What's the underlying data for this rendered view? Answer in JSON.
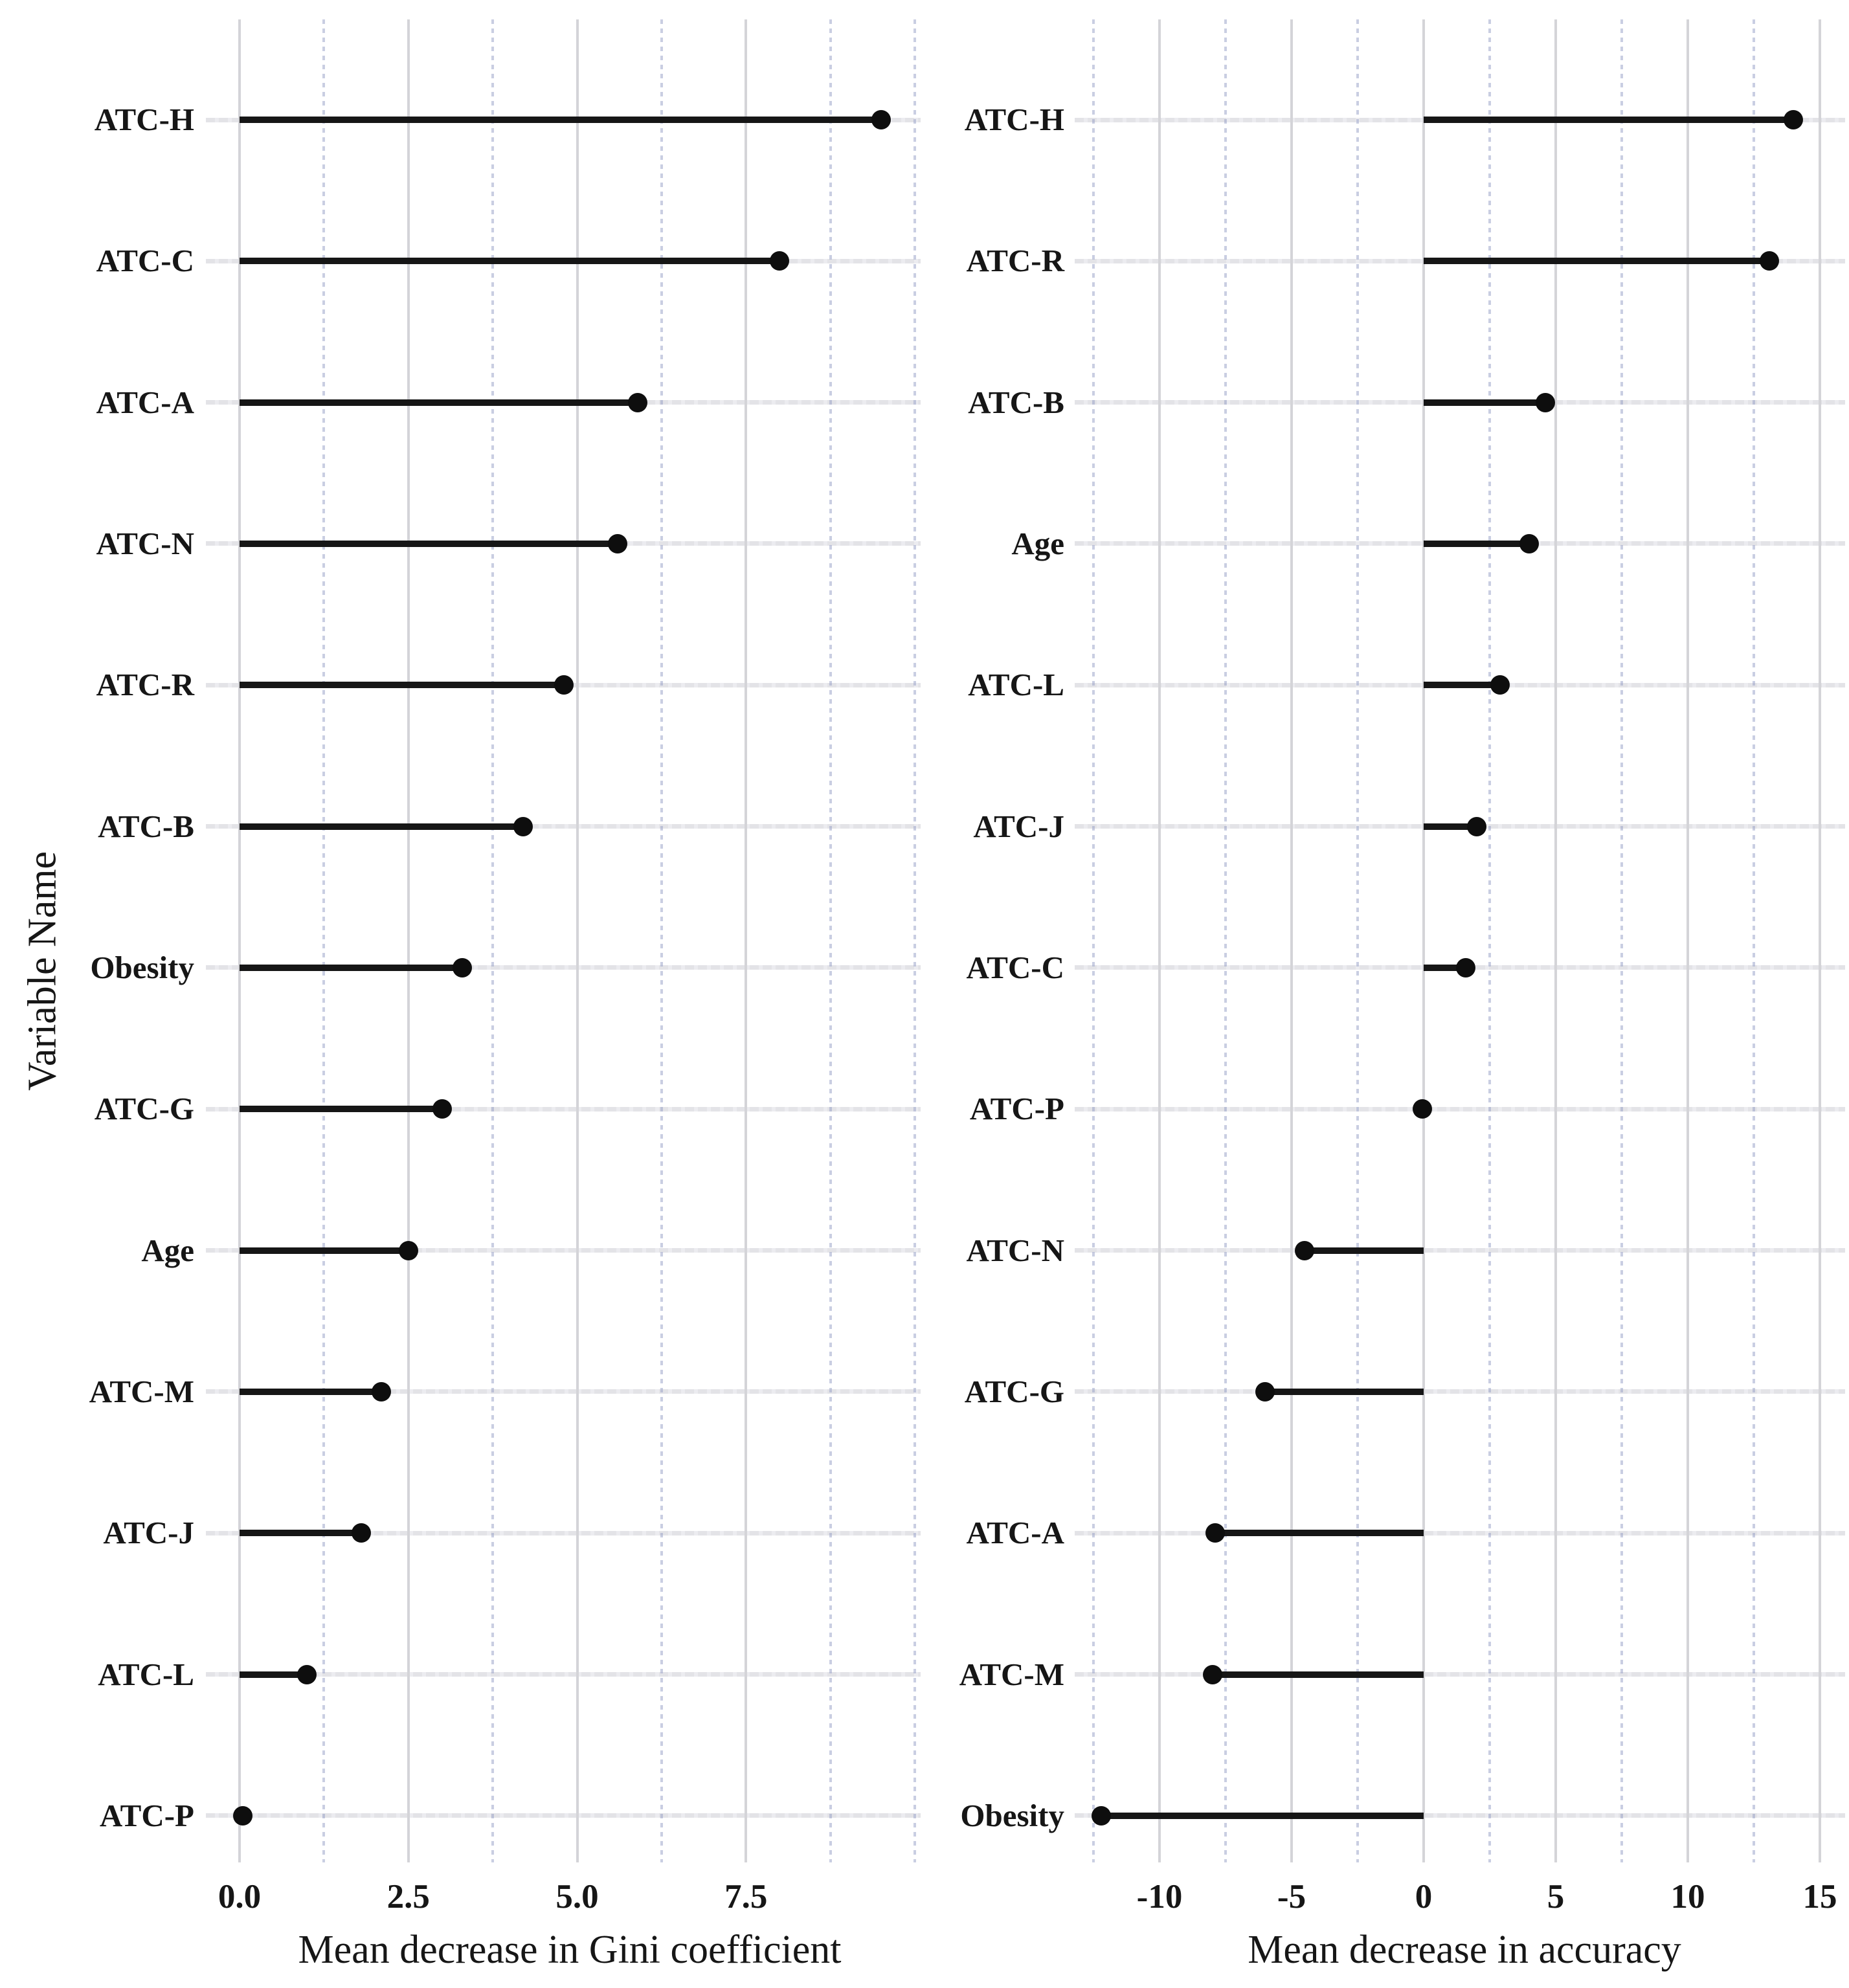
{
  "chart_data": {
    "type": "lollipop",
    "title": "",
    "ylabel": "Variable Name",
    "grid": true,
    "colors": {
      "point": "#0e0e0e",
      "stem": "#161616",
      "grid_major": "#d4d4d8",
      "grid_minor": "#aeb6d4",
      "row_line": "#e3e3e7",
      "text": "#161616",
      "background": "#ffffff"
    },
    "panels": [
      {
        "name": "gini",
        "xlabel": "Mean decrease in Gini coefficient",
        "x_ticks": [
          {
            "v": 0.0,
            "label": "0.0"
          },
          {
            "v": 2.5,
            "label": "2.5"
          },
          {
            "v": 5.0,
            "label": "5.0"
          },
          {
            "v": 7.5,
            "label": "7.5"
          }
        ],
        "x_minor": [
          1.25,
          3.75,
          6.25,
          8.75,
          10.0
        ],
        "xlim": [
          -0.5,
          10.08
        ],
        "points": [
          {
            "label": "ATC-H",
            "value": 9.5
          },
          {
            "label": "ATC-C",
            "value": 8.0
          },
          {
            "label": "ATC-A",
            "value": 5.9
          },
          {
            "label": "ATC-N",
            "value": 5.6
          },
          {
            "label": "ATC-R",
            "value": 4.8
          },
          {
            "label": "ATC-B",
            "value": 4.2
          },
          {
            "label": "Obesity",
            "value": 3.3
          },
          {
            "label": "ATC-G",
            "value": 3.0
          },
          {
            "label": "Age",
            "value": 2.5
          },
          {
            "label": "ATC-M",
            "value": 2.1
          },
          {
            "label": "ATC-J",
            "value": 1.8
          },
          {
            "label": "ATC-L",
            "value": 1.0
          },
          {
            "label": "ATC-P",
            "value": 0.05
          }
        ]
      },
      {
        "name": "accuracy",
        "xlabel": "Mean decrease in accuracy",
        "x_ticks": [
          {
            "v": -10,
            "label": "-10"
          },
          {
            "v": -5,
            "label": "-5"
          },
          {
            "v": 0,
            "label": "0"
          },
          {
            "v": 5,
            "label": "5"
          },
          {
            "v": 10,
            "label": "10"
          },
          {
            "v": 15,
            "label": "15"
          }
        ],
        "x_minor": [
          -12.5,
          -7.5,
          -2.5,
          2.5,
          7.5,
          12.5
        ],
        "xlim": [
          -13.2,
          15.95
        ],
        "points": [
          {
            "label": "ATC-H",
            "value": 14.0
          },
          {
            "label": "ATC-R",
            "value": 13.1
          },
          {
            "label": "ATC-B",
            "value": 4.6
          },
          {
            "label": "Age",
            "value": 4.0
          },
          {
            "label": "ATC-L",
            "value": 2.9
          },
          {
            "label": "ATC-J",
            "value": 2.0
          },
          {
            "label": "ATC-C",
            "value": 1.6
          },
          {
            "label": "ATC-P",
            "value": -0.05
          },
          {
            "label": "ATC-N",
            "value": -4.5
          },
          {
            "label": "ATC-G",
            "value": -6.0
          },
          {
            "label": "ATC-A",
            "value": -7.9
          },
          {
            "label": "ATC-M",
            "value": -8.0
          },
          {
            "label": "Obesity",
            "value": -12.2
          }
        ]
      }
    ]
  }
}
